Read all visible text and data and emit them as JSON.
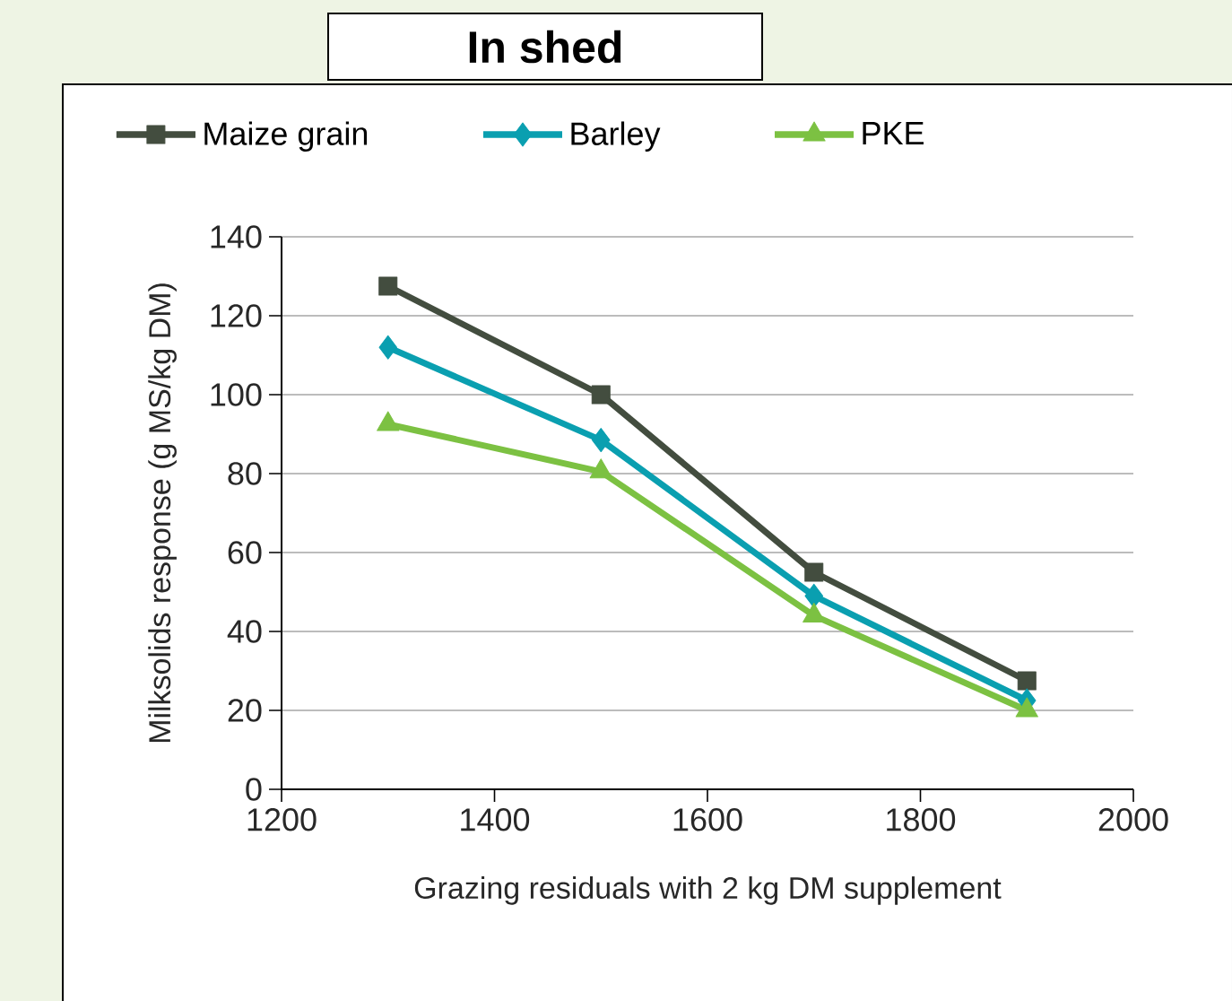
{
  "chart_data": {
    "type": "line",
    "title": "In shed",
    "xlabel": "Grazing residuals with 2 kg DM supplement",
    "ylabel": "Milksolids response (g MS/kg DM)",
    "x": [
      1300,
      1500,
      1700,
      1900
    ],
    "series": [
      {
        "name": "Maize grain",
        "color": "#434d3f",
        "marker": "square",
        "values": [
          127.5,
          100,
          55,
          27.5
        ]
      },
      {
        "name": "Barley",
        "color": "#0a9fb0",
        "marker": "diamond",
        "values": [
          112,
          88.5,
          49,
          22.5
        ]
      },
      {
        "name": "PKE",
        "color": "#7cc142",
        "marker": "triangle",
        "values": [
          92.5,
          80.5,
          44,
          20
        ]
      }
    ],
    "xlim": [
      1200,
      2000
    ],
    "xticks": [
      1200,
      1400,
      1600,
      1800,
      2000
    ],
    "ylim": [
      0,
      140
    ],
    "yticks": [
      0,
      20,
      40,
      60,
      80,
      100,
      120,
      140
    ],
    "grid": "y",
    "legend": "top",
    "line_style": "solid"
  }
}
